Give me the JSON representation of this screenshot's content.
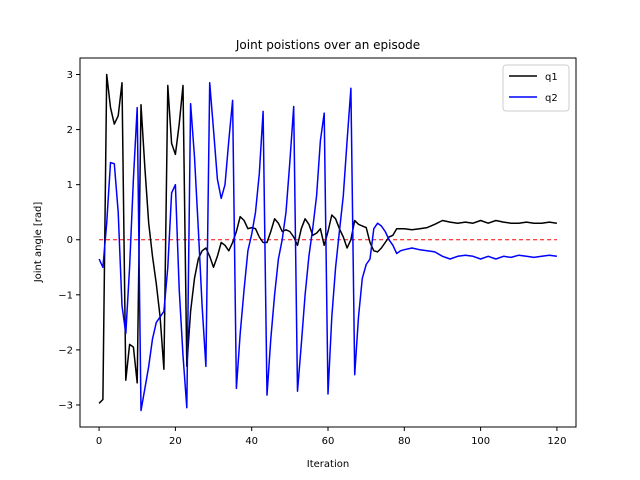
{
  "chart_data": {
    "type": "line",
    "title": "Joint poistions over an episode",
    "xlabel": "Iteration",
    "ylabel": "Joint angle [rad]",
    "xlim": [
      -5,
      125
    ],
    "ylim": [
      -3.4,
      3.3
    ],
    "xticks": [
      0,
      20,
      40,
      60,
      80,
      100,
      120
    ],
    "yticks": [
      -3,
      -2,
      -1,
      0,
      1,
      2,
      3
    ],
    "legend_position": "top-right",
    "reference_line": {
      "y": 0,
      "color": "#ff0000",
      "style": "dashed"
    },
    "series": [
      {
        "name": "q1",
        "color": "#000000",
        "x": [
          0,
          1,
          2,
          3,
          4,
          5,
          6,
          7,
          8,
          9,
          10,
          11,
          12,
          13,
          14,
          15,
          16,
          17,
          18,
          19,
          20,
          21,
          22,
          23,
          24,
          25,
          26,
          27,
          28,
          29,
          30,
          31,
          32,
          33,
          34,
          35,
          36,
          37,
          38,
          39,
          40,
          41,
          42,
          43,
          44,
          45,
          46,
          47,
          48,
          49,
          50,
          51,
          52,
          53,
          54,
          55,
          56,
          57,
          58,
          59,
          60,
          61,
          62,
          63,
          64,
          65,
          66,
          67,
          68,
          69,
          70,
          71,
          72,
          73,
          74,
          75,
          76,
          77,
          78,
          79,
          80,
          82,
          84,
          86,
          88,
          90,
          92,
          94,
          96,
          98,
          100,
          102,
          104,
          106,
          108,
          110,
          112,
          114,
          116,
          118,
          120
        ],
        "y": [
          -2.97,
          -2.9,
          3.0,
          2.4,
          2.1,
          2.25,
          2.85,
          -2.55,
          -1.9,
          -1.95,
          -2.6,
          2.45,
          1.3,
          0.3,
          -0.3,
          -0.8,
          -1.4,
          -2.35,
          2.8,
          1.75,
          1.55,
          2.1,
          2.8,
          -2.3,
          -1.3,
          -0.7,
          -0.35,
          -0.2,
          -0.15,
          -0.3,
          -0.5,
          -0.3,
          -0.05,
          -0.1,
          -0.2,
          -0.05,
          0.15,
          0.42,
          0.35,
          0.2,
          0.22,
          0.2,
          0.05,
          -0.05,
          -0.05,
          0.15,
          0.38,
          0.3,
          0.15,
          0.18,
          0.15,
          0.05,
          -0.1,
          0.2,
          0.38,
          0.28,
          0.08,
          0.12,
          0.2,
          -0.1,
          0.15,
          0.45,
          0.38,
          0.2,
          0.05,
          -0.15,
          0.0,
          0.35,
          0.28,
          0.25,
          0.22,
          -0.05,
          -0.2,
          -0.22,
          -0.15,
          -0.05,
          0.05,
          0.08,
          0.2,
          0.2,
          0.2,
          0.18,
          0.2,
          0.22,
          0.28,
          0.35,
          0.32,
          0.3,
          0.32,
          0.3,
          0.35,
          0.3,
          0.35,
          0.32,
          0.3,
          0.3,
          0.32,
          0.3,
          0.3,
          0.32,
          0.3
        ],
        "note": ""
      },
      {
        "name": "q2",
        "color": "#0000ff",
        "x": [
          0,
          1,
          2,
          3,
          4,
          5,
          6,
          7,
          8,
          9,
          10,
          11,
          12,
          13,
          14,
          15,
          16,
          17,
          18,
          19,
          20,
          21,
          22,
          23,
          24,
          25,
          26,
          27,
          28,
          29,
          30,
          31,
          32,
          33,
          34,
          35,
          36,
          37,
          38,
          39,
          40,
          41,
          42,
          43,
          44,
          45,
          46,
          47,
          48,
          49,
          50,
          51,
          52,
          53,
          54,
          55,
          56,
          57,
          58,
          59,
          60,
          61,
          62,
          63,
          64,
          65,
          66,
          67,
          68,
          69,
          70,
          71,
          72,
          73,
          74,
          75,
          76,
          77,
          78,
          79,
          80,
          82,
          84,
          86,
          88,
          90,
          92,
          94,
          96,
          98,
          100,
          102,
          104,
          106,
          108,
          110,
          112,
          114,
          116,
          118,
          120
        ],
        "y": [
          -0.35,
          -0.5,
          0.3,
          1.4,
          1.38,
          0.5,
          -1.2,
          -1.7,
          -0.5,
          1.1,
          2.4,
          -3.1,
          -2.7,
          -2.3,
          -1.8,
          -1.5,
          -1.4,
          -1.3,
          -0.5,
          0.85,
          1.0,
          -0.9,
          -2.1,
          -3.05,
          2.47,
          1.5,
          0.2,
          -1.2,
          -2.3,
          2.85,
          2.0,
          1.1,
          0.75,
          1.0,
          1.8,
          2.53,
          -2.7,
          -1.7,
          -0.9,
          -0.2,
          0.1,
          0.5,
          1.2,
          2.33,
          -2.82,
          -1.8,
          -1.0,
          -0.35,
          0.0,
          0.5,
          1.4,
          2.42,
          -2.75,
          -1.9,
          -1.0,
          -0.3,
          0.2,
          0.8,
          1.8,
          2.3,
          -2.8,
          -1.4,
          -0.5,
          0.15,
          0.8,
          1.8,
          2.75,
          -2.45,
          -1.4,
          -0.7,
          -0.45,
          -0.35,
          0.2,
          0.3,
          0.25,
          0.15,
          0.0,
          -0.1,
          -0.25,
          -0.2,
          -0.18,
          -0.15,
          -0.18,
          -0.2,
          -0.22,
          -0.3,
          -0.35,
          -0.3,
          -0.28,
          -0.3,
          -0.35,
          -0.3,
          -0.35,
          -0.3,
          -0.32,
          -0.28,
          -0.3,
          -0.32,
          -0.3,
          -0.28,
          -0.3
        ],
        "note": ""
      }
    ]
  }
}
